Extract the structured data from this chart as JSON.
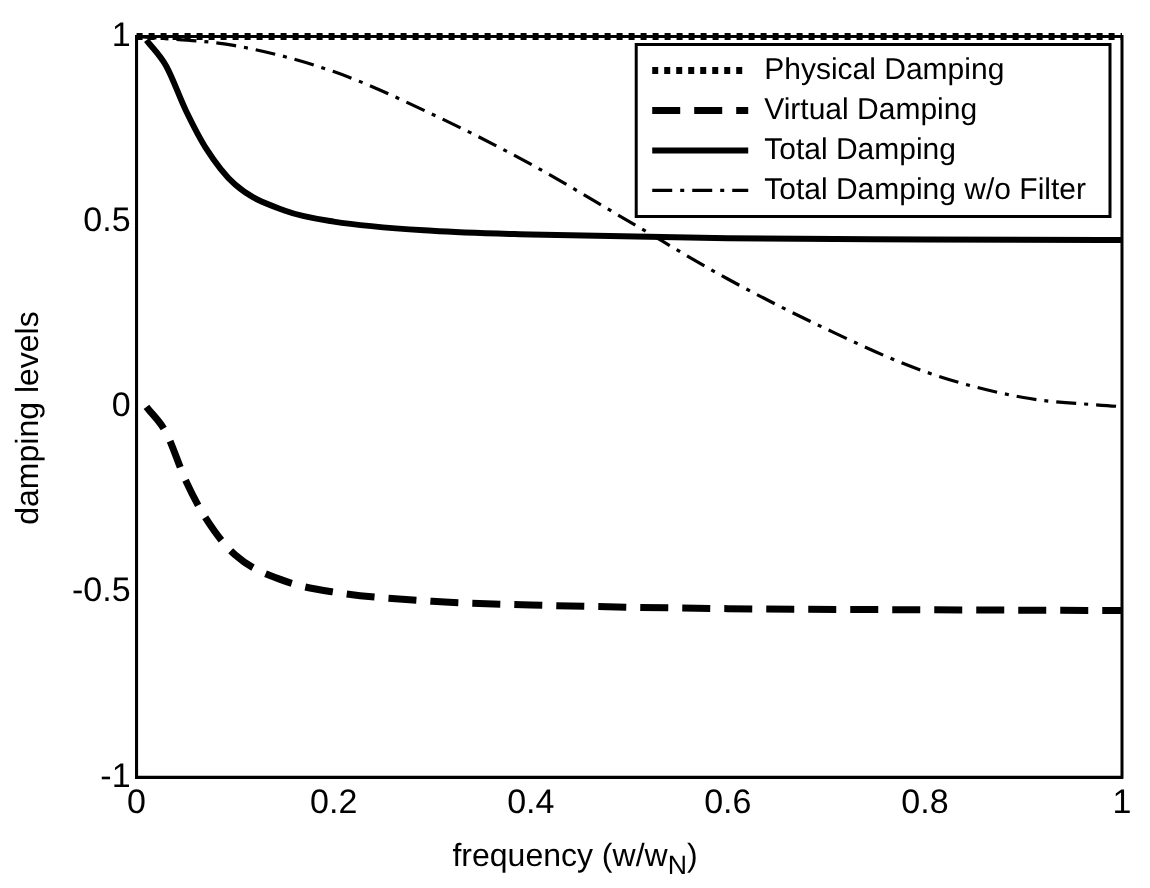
{
  "chart_data": {
    "type": "line",
    "xlabel": "frequency (w/w$_{N}$)",
    "ylabel": "damping levels",
    "xlim": [
      0,
      1
    ],
    "ylim": [
      -1,
      1
    ],
    "xticks": [
      0,
      0.2,
      0.4,
      0.6,
      0.8,
      1
    ],
    "yticks": [
      -1,
      -0.5,
      0,
      0.5,
      1
    ],
    "legend": "top right",
    "grid": false,
    "marker": "none",
    "series": [
      {
        "name": "Physical Damping",
        "color": "#000000",
        "line_style": "dotted",
        "x": [
          0,
          0.5,
          1
        ],
        "values": [
          1,
          1,
          1
        ]
      },
      {
        "name": "Virtual Damping",
        "color": "#000000",
        "line_style": "dashed",
        "x": [
          0.01,
          0.03,
          0.05,
          0.07,
          0.1,
          0.15,
          0.2,
          0.3,
          0.4,
          0.6,
          0.8,
          1
        ],
        "values": [
          0,
          -0.07,
          -0.2,
          -0.3,
          -0.4,
          -0.47,
          -0.5,
          -0.525,
          -0.535,
          -0.545,
          -0.548,
          -0.55
        ]
      },
      {
        "name": "Total Damping",
        "color": "#000000",
        "line_style": "solid",
        "x": [
          0.01,
          0.03,
          0.05,
          0.07,
          0.1,
          0.15,
          0.2,
          0.3,
          0.4,
          0.6,
          0.8,
          1
        ],
        "values": [
          0.99,
          0.92,
          0.8,
          0.7,
          0.6,
          0.53,
          0.5,
          0.475,
          0.465,
          0.455,
          0.452,
          0.45
        ]
      },
      {
        "name": "Total Damping w/o Filter",
        "color": "#000000",
        "line_style": "dashdot",
        "x": [
          0,
          0.1,
          0.2,
          0.3,
          0.4,
          0.5,
          0.6,
          0.7,
          0.8,
          0.9,
          1
        ],
        "values": [
          1,
          0.975,
          0.905,
          0.79,
          0.655,
          0.5,
          0.345,
          0.21,
          0.095,
          0.025,
          0
        ]
      }
    ]
  }
}
